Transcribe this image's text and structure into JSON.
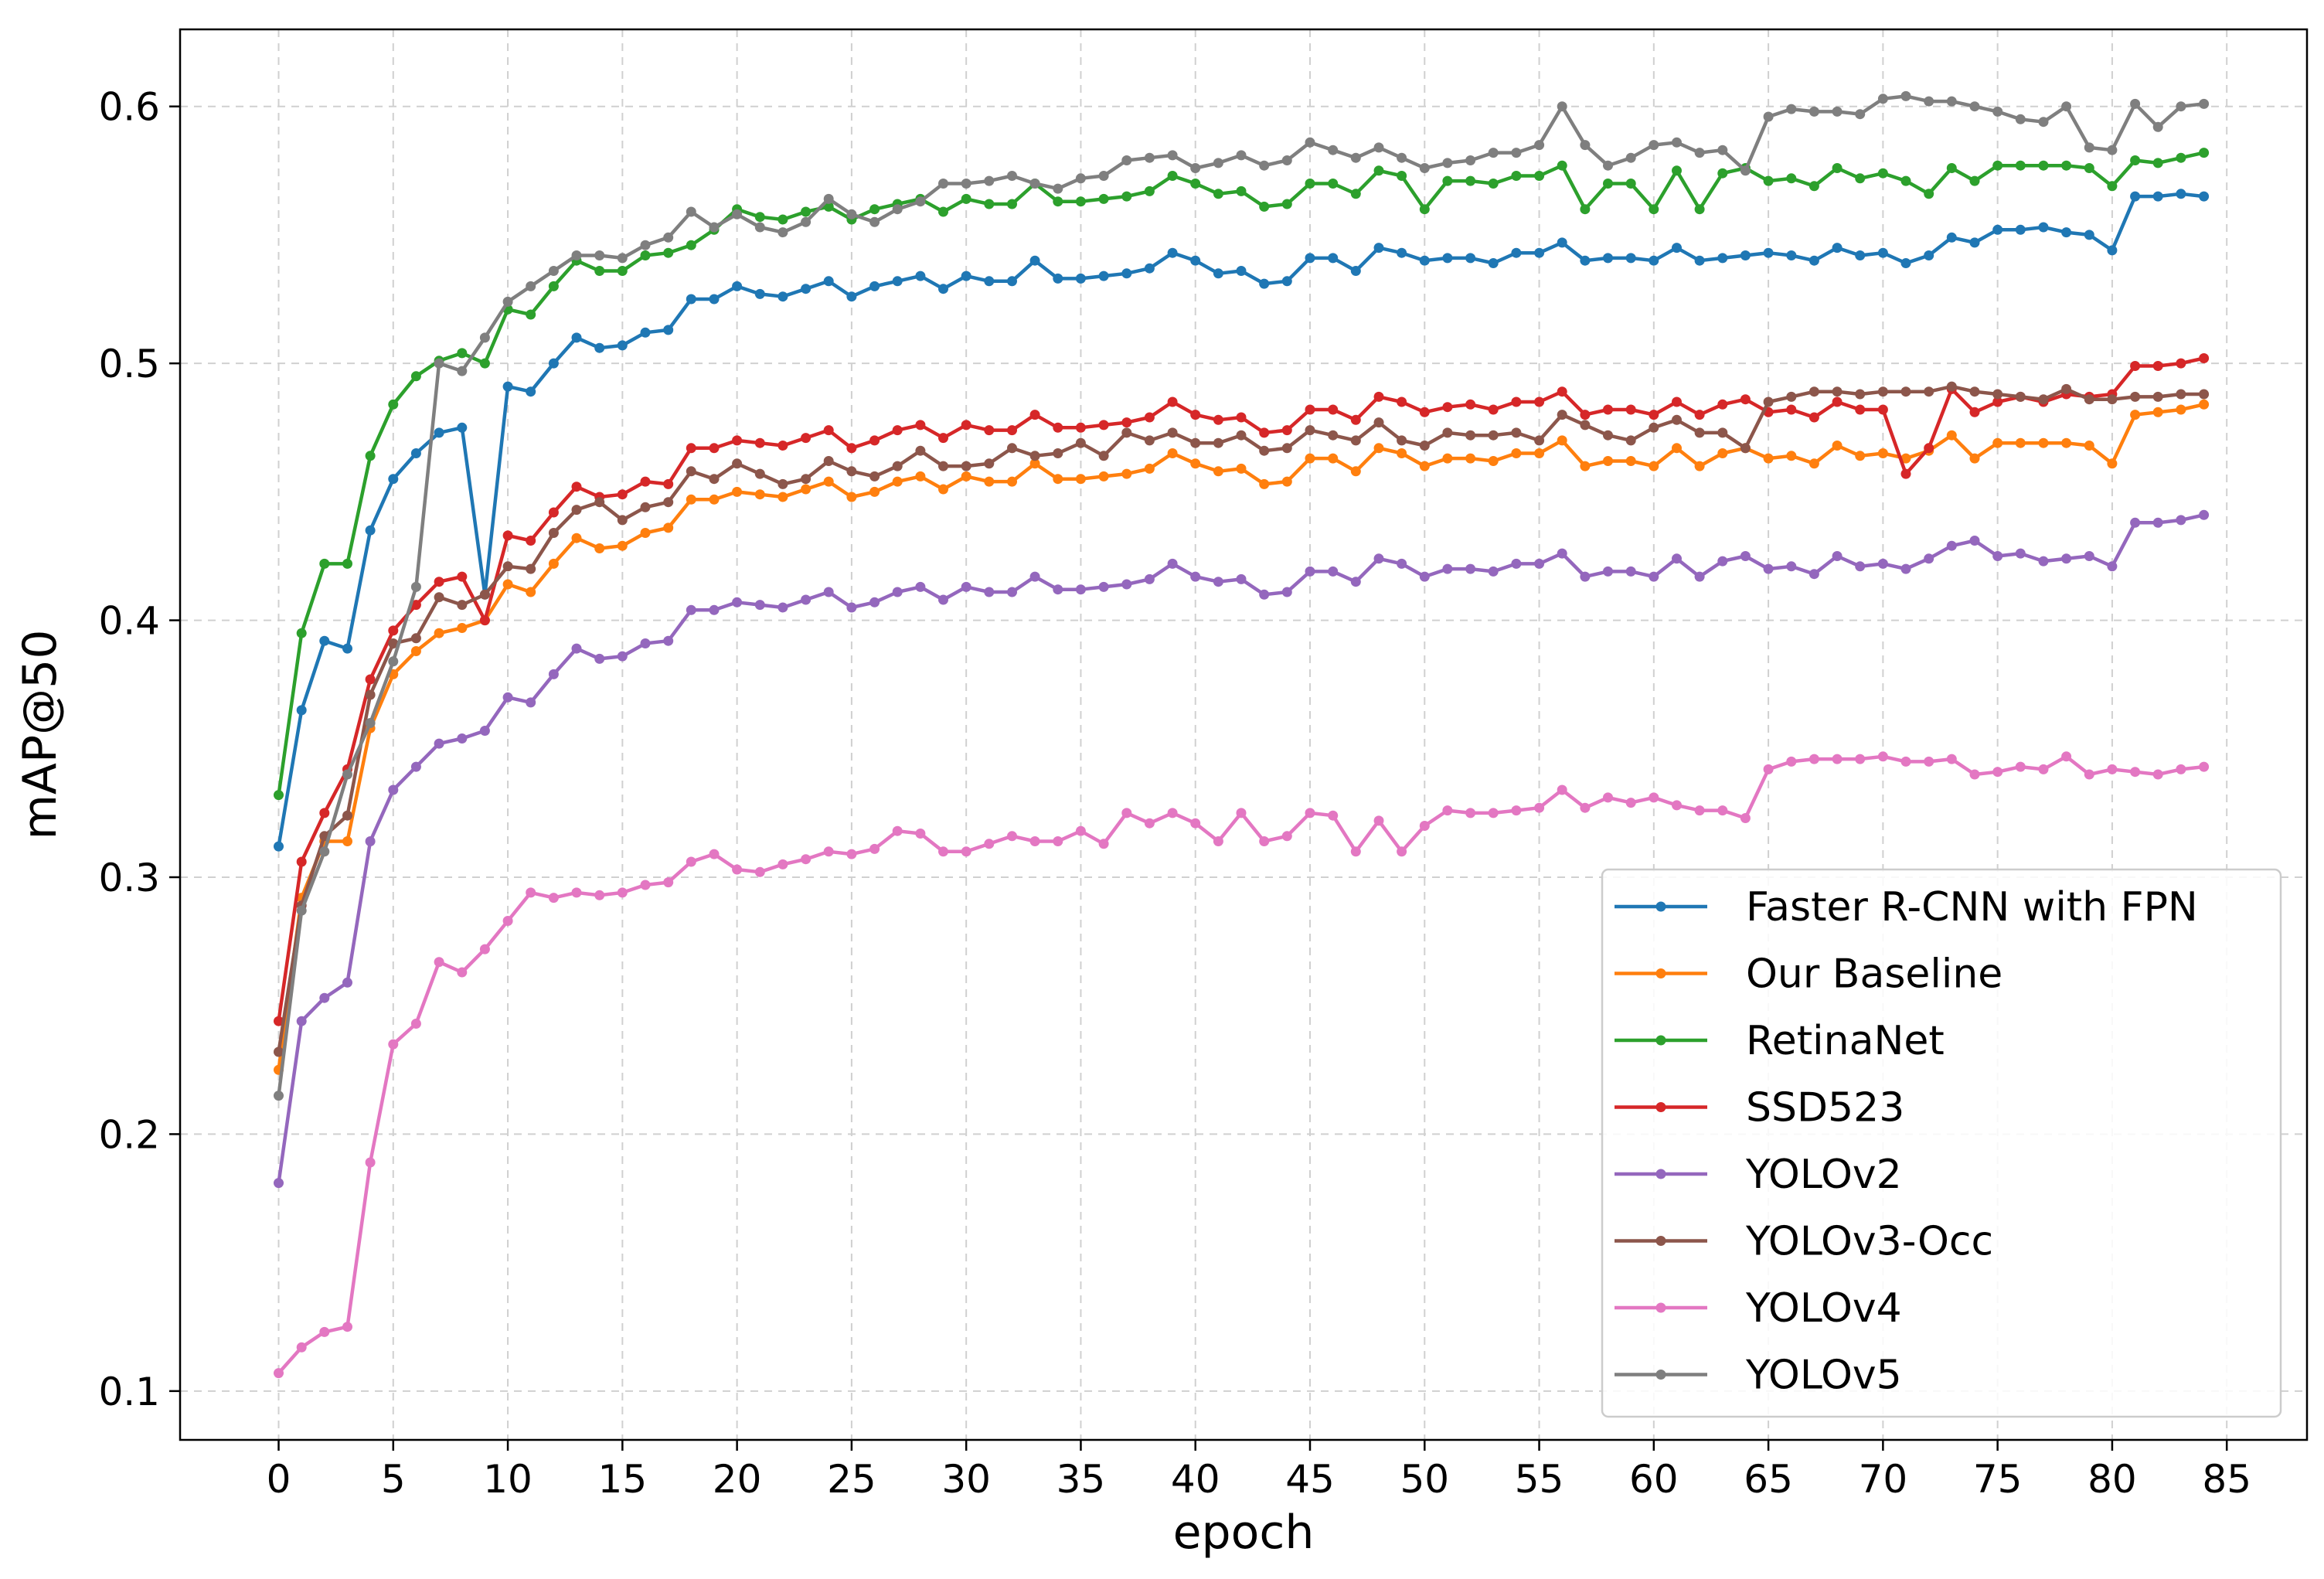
{
  "chart_data": {
    "type": "line",
    "title": "",
    "xlabel": "epoch",
    "ylabel": "mAP@50",
    "xlim": [
      -4.3,
      88.5
    ],
    "ylim": [
      0.081,
      0.63
    ],
    "xticks": [
      0,
      5,
      10,
      15,
      20,
      25,
      30,
      35,
      40,
      45,
      50,
      55,
      60,
      65,
      70,
      75,
      80,
      85
    ],
    "yticks": [
      0.1,
      0.2,
      0.3,
      0.4,
      0.5,
      0.6
    ],
    "ytick_labels": [
      "0.1",
      "0.2",
      "0.3",
      "0.4",
      "0.5",
      "0.6"
    ],
    "grid": true,
    "legend_position": "lower right",
    "x": [
      0,
      1,
      2,
      3,
      4,
      5,
      6,
      7,
      8,
      9,
      10,
      11,
      12,
      13,
      14,
      15,
      16,
      17,
      18,
      19,
      20,
      21,
      22,
      23,
      24,
      25,
      26,
      27,
      28,
      29,
      30,
      31,
      32,
      33,
      34,
      35,
      36,
      37,
      38,
      39,
      40,
      41,
      42,
      43,
      44,
      45,
      46,
      47,
      48,
      49,
      50,
      51,
      52,
      53,
      54,
      55,
      56,
      57,
      58,
      59,
      60,
      61,
      62,
      63,
      64,
      65,
      66,
      67,
      68,
      69,
      70,
      71,
      72,
      73,
      74,
      75,
      76,
      77,
      78,
      79,
      80,
      81,
      82,
      83,
      84
    ],
    "series": [
      {
        "name": "Faster R-CNN with FPN",
        "color": "#1f77b4",
        "values": [
          0.312,
          0.365,
          0.392,
          0.389,
          0.435,
          0.455,
          0.465,
          0.473,
          0.475,
          0.41,
          0.491,
          0.489,
          0.5,
          0.51,
          0.506,
          0.507,
          0.512,
          0.513,
          0.525,
          0.525,
          0.53,
          0.527,
          0.526,
          0.529,
          0.532,
          0.526,
          0.53,
          0.532,
          0.534,
          0.529,
          0.534,
          0.532,
          0.532,
          0.54,
          0.533,
          0.533,
          0.534,
          0.535,
          0.537,
          0.543,
          0.54,
          0.535,
          0.536,
          0.531,
          0.532,
          0.541,
          0.541,
          0.536,
          0.545,
          0.543,
          0.54,
          0.541,
          0.541,
          0.539,
          0.543,
          0.543,
          0.547,
          0.54,
          0.541,
          0.541,
          0.54,
          0.545,
          0.54,
          0.541,
          0.542,
          0.543,
          0.542,
          0.54,
          0.545,
          0.542,
          0.543,
          0.539,
          0.542,
          0.549,
          0.547,
          0.552,
          0.552,
          0.553,
          0.551,
          0.55,
          0.544,
          0.565,
          0.565,
          0.566,
          0.565
        ]
      },
      {
        "name": "Our Baseline",
        "color": "#ff7f0e",
        "values": [
          0.225,
          0.292,
          0.314,
          0.314,
          0.358,
          0.379,
          0.388,
          0.395,
          0.397,
          0.4,
          0.414,
          0.411,
          0.422,
          0.432,
          0.428,
          0.429,
          0.434,
          0.436,
          0.447,
          0.447,
          0.45,
          0.449,
          0.448,
          0.451,
          0.454,
          0.448,
          0.45,
          0.454,
          0.456,
          0.451,
          0.456,
          0.454,
          0.454,
          0.461,
          0.455,
          0.455,
          0.456,
          0.457,
          0.459,
          0.465,
          0.461,
          0.458,
          0.459,
          0.453,
          0.454,
          0.463,
          0.463,
          0.458,
          0.467,
          0.465,
          0.46,
          0.463,
          0.463,
          0.462,
          0.465,
          0.465,
          0.47,
          0.46,
          0.462,
          0.462,
          0.46,
          0.467,
          0.46,
          0.465,
          0.467,
          0.463,
          0.464,
          0.461,
          0.468,
          0.464,
          0.465,
          0.463,
          0.466,
          0.472,
          0.463,
          0.469,
          0.469,
          0.469,
          0.469,
          0.468,
          0.461,
          0.48,
          0.481,
          0.482,
          0.484
        ]
      },
      {
        "name": "RetinaNet",
        "color": "#2ca02c",
        "values": [
          0.332,
          0.395,
          0.422,
          0.422,
          0.464,
          0.484,
          0.495,
          0.501,
          0.504,
          0.5,
          0.521,
          0.519,
          0.53,
          0.54,
          0.536,
          0.536,
          0.542,
          0.543,
          0.546,
          0.552,
          0.56,
          0.557,
          0.556,
          0.559,
          0.561,
          0.556,
          0.56,
          0.562,
          0.564,
          0.559,
          0.564,
          0.562,
          0.562,
          0.57,
          0.563,
          0.563,
          0.564,
          0.565,
          0.567,
          0.573,
          0.57,
          0.566,
          0.567,
          0.561,
          0.562,
          0.57,
          0.57,
          0.566,
          0.575,
          0.573,
          0.56,
          0.571,
          0.571,
          0.57,
          0.573,
          0.573,
          0.577,
          0.56,
          0.57,
          0.57,
          0.56,
          0.575,
          0.56,
          0.574,
          0.576,
          0.571,
          0.572,
          0.569,
          0.576,
          0.572,
          0.574,
          0.571,
          0.566,
          0.576,
          0.571,
          0.577,
          0.577,
          0.577,
          0.577,
          0.576,
          0.569,
          0.579,
          0.578,
          0.58,
          0.582
        ]
      },
      {
        "name": "SSD523",
        "color": "#d62728",
        "values": [
          0.244,
          0.306,
          0.325,
          0.342,
          0.377,
          0.396,
          0.406,
          0.415,
          0.417,
          0.4,
          0.433,
          0.431,
          0.442,
          0.452,
          0.448,
          0.449,
          0.454,
          0.453,
          0.467,
          0.467,
          0.47,
          0.469,
          0.468,
          0.471,
          0.474,
          0.467,
          0.47,
          0.474,
          0.476,
          0.471,
          0.476,
          0.474,
          0.474,
          0.48,
          0.475,
          0.475,
          0.476,
          0.477,
          0.479,
          0.485,
          0.48,
          0.478,
          0.479,
          0.473,
          0.474,
          0.482,
          0.482,
          0.478,
          0.487,
          0.485,
          0.481,
          0.483,
          0.484,
          0.482,
          0.485,
          0.485,
          0.489,
          0.48,
          0.482,
          0.482,
          0.48,
          0.485,
          0.48,
          0.484,
          0.486,
          0.481,
          0.482,
          0.479,
          0.485,
          0.482,
          0.482,
          0.457,
          0.467,
          0.49,
          0.481,
          0.485,
          0.487,
          0.485,
          0.488,
          0.487,
          0.488,
          0.499,
          0.499,
          0.5,
          0.502
        ]
      },
      {
        "name": "YOLOv2",
        "color": "#9467bd",
        "values": [
          0.181,
          0.244,
          0.253,
          0.259,
          0.314,
          0.334,
          0.343,
          0.352,
          0.354,
          0.357,
          0.37,
          0.368,
          0.379,
          0.389,
          0.385,
          0.386,
          0.391,
          0.392,
          0.404,
          0.404,
          0.407,
          0.406,
          0.405,
          0.408,
          0.411,
          0.405,
          0.407,
          0.411,
          0.413,
          0.408,
          0.413,
          0.411,
          0.411,
          0.417,
          0.412,
          0.412,
          0.413,
          0.414,
          0.416,
          0.422,
          0.417,
          0.415,
          0.416,
          0.41,
          0.411,
          0.419,
          0.419,
          0.415,
          0.424,
          0.422,
          0.417,
          0.42,
          0.42,
          0.419,
          0.422,
          0.422,
          0.426,
          0.417,
          0.419,
          0.419,
          0.417,
          0.424,
          0.417,
          0.423,
          0.425,
          0.42,
          0.421,
          0.418,
          0.425,
          0.421,
          0.422,
          0.42,
          0.424,
          0.429,
          0.431,
          0.425,
          0.426,
          0.423,
          0.424,
          0.425,
          0.421,
          0.438,
          0.438,
          0.439,
          0.441
        ]
      },
      {
        "name": "YOLOv3-Occ",
        "color": "#8c564b",
        "values": [
          0.232,
          0.289,
          0.316,
          0.324,
          0.371,
          0.391,
          0.393,
          0.409,
          0.406,
          0.41,
          0.421,
          0.42,
          0.434,
          0.443,
          0.446,
          0.439,
          0.444,
          0.446,
          0.458,
          0.455,
          0.461,
          0.457,
          0.453,
          0.455,
          0.462,
          0.458,
          0.456,
          0.46,
          0.466,
          0.46,
          0.46,
          0.461,
          0.467,
          0.464,
          0.465,
          0.469,
          0.464,
          0.473,
          0.47,
          0.473,
          0.469,
          0.469,
          0.472,
          0.466,
          0.467,
          0.474,
          0.472,
          0.47,
          0.477,
          0.47,
          0.468,
          0.473,
          0.472,
          0.472,
          0.473,
          0.47,
          0.48,
          0.476,
          0.472,
          0.47,
          0.475,
          0.478,
          0.473,
          0.473,
          0.467,
          0.485,
          0.487,
          0.489,
          0.489,
          0.488,
          0.489,
          0.489,
          0.489,
          0.491,
          0.489,
          0.488,
          0.487,
          0.486,
          0.49,
          0.486,
          0.486,
          0.487,
          0.487,
          0.488,
          0.488
        ]
      },
      {
        "name": "YOLOv4",
        "color": "#e377c2",
        "values": [
          0.107,
          0.117,
          0.123,
          0.125,
          0.189,
          0.235,
          0.243,
          0.267,
          0.263,
          0.272,
          0.283,
          0.294,
          0.292,
          0.294,
          0.293,
          0.294,
          0.297,
          0.298,
          0.306,
          0.309,
          0.303,
          0.302,
          0.305,
          0.307,
          0.31,
          0.309,
          0.311,
          0.318,
          0.317,
          0.31,
          0.31,
          0.313,
          0.316,
          0.314,
          0.314,
          0.318,
          0.313,
          0.325,
          0.321,
          0.325,
          0.321,
          0.314,
          0.325,
          0.314,
          0.316,
          0.325,
          0.324,
          0.31,
          0.322,
          0.31,
          0.32,
          0.326,
          0.325,
          0.325,
          0.326,
          0.327,
          0.334,
          0.327,
          0.331,
          0.329,
          0.331,
          0.328,
          0.326,
          0.326,
          0.323,
          0.342,
          0.345,
          0.346,
          0.346,
          0.346,
          0.347,
          0.345,
          0.345,
          0.346,
          0.34,
          0.341,
          0.343,
          0.342,
          0.347,
          0.34,
          0.342,
          0.341,
          0.34,
          0.342,
          0.343
        ]
      },
      {
        "name": "YOLOv5",
        "color": "#7f7f7f",
        "values": [
          0.215,
          0.287,
          0.31,
          0.34,
          0.36,
          0.384,
          0.413,
          0.5,
          0.497,
          0.51,
          0.524,
          0.53,
          0.536,
          0.542,
          0.542,
          0.541,
          0.546,
          0.549,
          0.559,
          0.553,
          0.558,
          0.553,
          0.551,
          0.555,
          0.564,
          0.558,
          0.555,
          0.56,
          0.563,
          0.57,
          0.57,
          0.571,
          0.573,
          0.57,
          0.568,
          0.572,
          0.573,
          0.579,
          0.58,
          0.581,
          0.576,
          0.578,
          0.581,
          0.577,
          0.579,
          0.586,
          0.583,
          0.58,
          0.584,
          0.58,
          0.576,
          0.578,
          0.579,
          0.582,
          0.582,
          0.585,
          0.6,
          0.585,
          0.577,
          0.58,
          0.585,
          0.586,
          0.582,
          0.583,
          0.575,
          0.596,
          0.599,
          0.598,
          0.598,
          0.597,
          0.603,
          0.604,
          0.602,
          0.602,
          0.6,
          0.598,
          0.595,
          0.594,
          0.6,
          0.584,
          0.583,
          0.601,
          0.592,
          0.6,
          0.601
        ]
      }
    ]
  }
}
